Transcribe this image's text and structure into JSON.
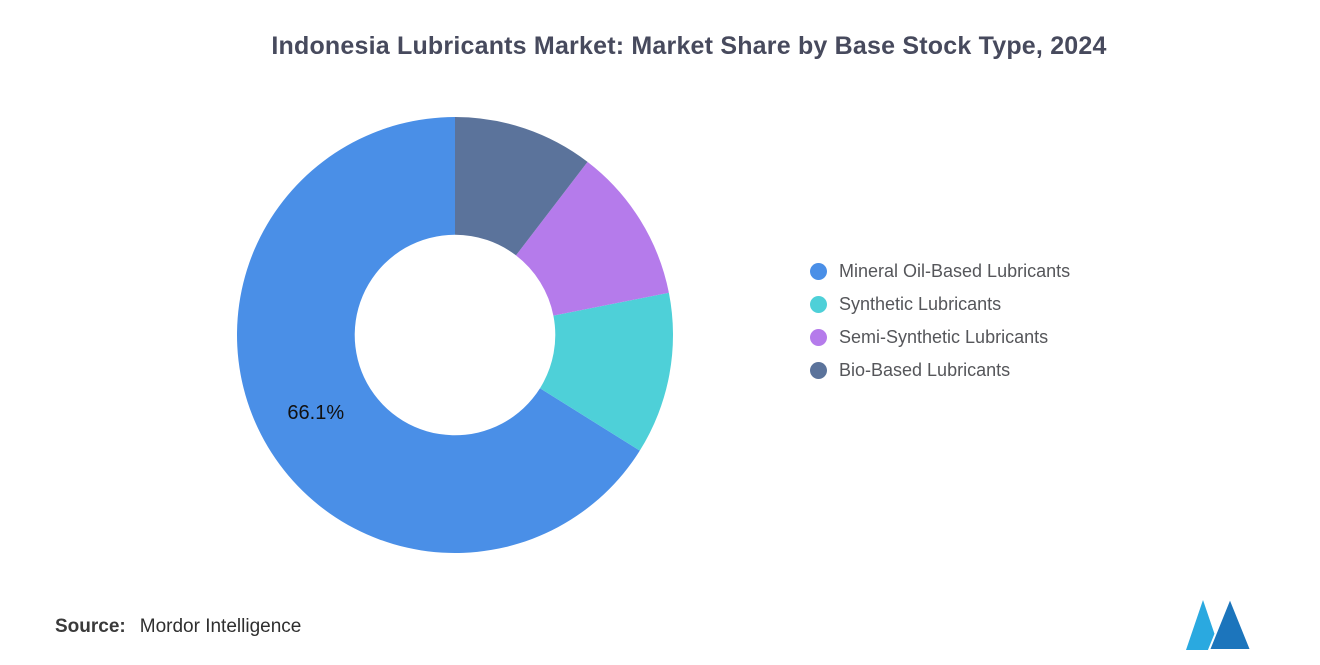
{
  "page": {
    "title": "Indonesia Lubricants Market: Market Share by Base Stock Type, 2024",
    "source_label": "Source:",
    "source_value": "Mordor Intelligence"
  },
  "branding": {
    "logo_name": "mordor-intelligence-logo",
    "logo_light_color": "#2AA9E0",
    "logo_dark_color": "#1C75BC"
  },
  "chart_data": {
    "type": "pie",
    "subtype": "donut",
    "title": "Indonesia Lubricants Market: Market Share by Base Stock Type, 2024",
    "legend_position": "right",
    "start_angle": "top",
    "direction": "counterclockwise",
    "inner_radius_ratio": 0.46,
    "slice_label_color": "#111111",
    "series": [
      {
        "name": "Mineral Oil-Based Lubricants",
        "value": 66.1,
        "color": "#4A8FE7",
        "label": "66.1%"
      },
      {
        "name": "Synthetic Lubricants",
        "value": 12.0,
        "color": "#4ED0D8",
        "label": ""
      },
      {
        "name": "Semi-Synthetic Lubricants",
        "value": 11.5,
        "color": "#B57BEB",
        "label": ""
      },
      {
        "name": "Bio-Based Lubricants",
        "value": 10.4,
        "color": "#5B739B",
        "label": ""
      }
    ]
  }
}
